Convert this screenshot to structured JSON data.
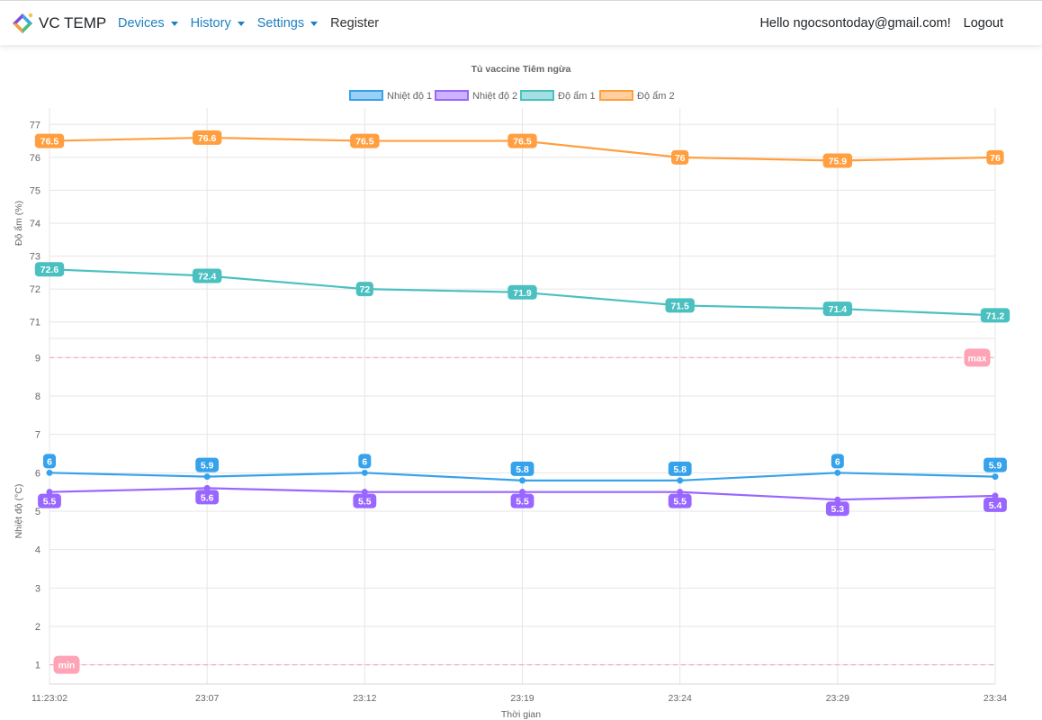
{
  "navbar": {
    "brand": "VC TEMP",
    "items": [
      {
        "label": "Devices",
        "dropdown": true
      },
      {
        "label": "History",
        "dropdown": true
      },
      {
        "label": "Settings",
        "dropdown": true
      },
      {
        "label": "Register",
        "dropdown": false
      }
    ],
    "greeting": "Hello ngocsontoday@gmail.com!",
    "logout": "Logout"
  },
  "chart_data": {
    "type": "line",
    "title": "Tủ vaccine Tiêm ngừa",
    "xlabel": "Thời gian",
    "categories": [
      "11:23:02",
      "23:07",
      "23:12",
      "23:19",
      "23:24",
      "23:29",
      "23:34"
    ],
    "legend_position": "top",
    "grid": true,
    "y_axes": [
      {
        "id": "humidity",
        "label": "Độ ẩm (%)",
        "range": [
          70.5,
          77.5
        ],
        "ticks": [
          71,
          72,
          73,
          74,
          75,
          76,
          77
        ]
      },
      {
        "id": "temperature",
        "label": "Nhiệt độ (°C)",
        "range": [
          0.5,
          9.5
        ],
        "ticks": [
          1,
          2,
          3,
          4,
          5,
          6,
          7,
          8,
          9
        ]
      }
    ],
    "series": [
      {
        "name": "Nhiệt độ 1",
        "axis": "temperature",
        "color": "#36a2eb",
        "values": [
          6,
          5.9,
          6,
          5.8,
          5.8,
          6,
          5.9
        ]
      },
      {
        "name": "Nhiệt độ 2",
        "axis": "temperature",
        "color": "#9966ff",
        "values": [
          5.5,
          5.6,
          5.5,
          5.5,
          5.5,
          5.3,
          5.4
        ]
      },
      {
        "name": "Độ ẩm 1",
        "axis": "humidity",
        "color": "#4bc0c0",
        "values": [
          72.6,
          72.4,
          72,
          71.9,
          71.5,
          71.4,
          71.2
        ]
      },
      {
        "name": "Độ ẩm 2",
        "axis": "humidity",
        "color": "#ff9f40",
        "values": [
          76.5,
          76.6,
          76.5,
          76.5,
          76,
          75.9,
          76
        ]
      }
    ],
    "thresholds": [
      {
        "label": "max",
        "axis": "temperature",
        "value": 9,
        "color": "#ffa3b6"
      },
      {
        "label": "min",
        "axis": "temperature",
        "value": 1,
        "color": "#ffa3b6"
      }
    ]
  }
}
